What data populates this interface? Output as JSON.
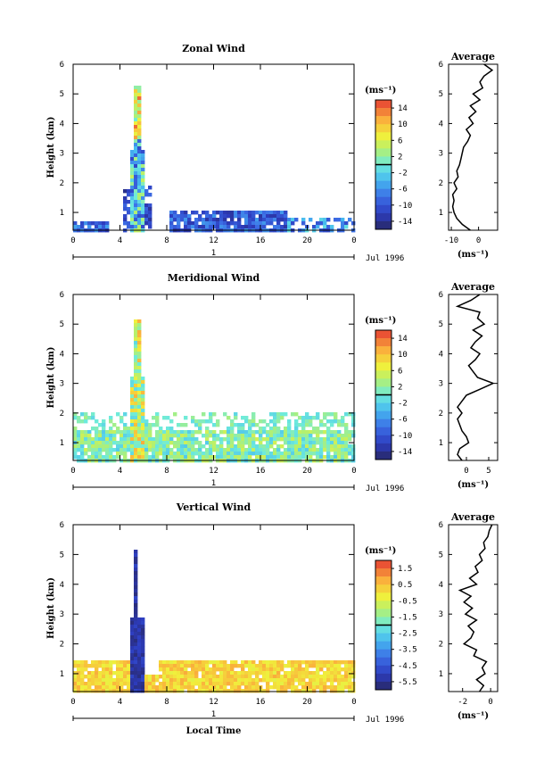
{
  "chart_data": [
    {
      "type": "heatmap",
      "title": "Zonal Wind",
      "ylabel": "Height (km)",
      "xlim": [
        0,
        24
      ],
      "ylim": [
        0.4,
        6
      ],
      "x_ticks": [
        "0",
        "4",
        "8",
        "12",
        "16",
        "20",
        "0"
      ],
      "y_ticks": [
        "1",
        "2",
        "3",
        "4",
        "5",
        "6"
      ],
      "date_label": "Jul 1996",
      "day_label": "1",
      "colorbar": {
        "unit": "(ms⁻¹)",
        "range": [
          -16,
          16
        ],
        "ticks": [
          "14",
          "10",
          "6",
          "2",
          "-2",
          "-6",
          "-10",
          "-14"
        ]
      },
      "profile": {
        "title": "Average",
        "xlabel": "(ms⁻¹)",
        "x_ticks": [
          "-10",
          "0"
        ],
        "xlim": [
          -11,
          7
        ],
        "heights": [
          0.4,
          0.6,
          0.8,
          1.0,
          1.2,
          1.4,
          1.6,
          1.8,
          2.0,
          2.2,
          2.4,
          2.6,
          2.8,
          3.0,
          3.2,
          3.4,
          3.6,
          3.8,
          4.0,
          4.2,
          4.4,
          4.6,
          4.8,
          5.0,
          5.2,
          5.4,
          5.6,
          5.8,
          6.0
        ],
        "values": [
          -3,
          -6,
          -8,
          -9,
          -9.5,
          -9,
          -9.5,
          -8,
          -9,
          -7.5,
          -8,
          -7,
          -6.5,
          -6,
          -5.5,
          -4,
          -3,
          -4.5,
          -2,
          -3.5,
          -1,
          -3,
          0.5,
          -2,
          1.5,
          0.5,
          2,
          5,
          2
        ]
      }
    },
    {
      "type": "heatmap",
      "title": "Meridional Wind",
      "ylabel": "Height (km)",
      "xlim": [
        0,
        24
      ],
      "ylim": [
        0.4,
        6
      ],
      "x_ticks": [
        "0",
        "4",
        "8",
        "12",
        "16",
        "20",
        "0"
      ],
      "y_ticks": [
        "1",
        "2",
        "3",
        "4",
        "5",
        "6"
      ],
      "date_label": "Jul 1996",
      "day_label": "1",
      "colorbar": {
        "unit": "(ms⁻¹)",
        "range": [
          -16,
          16
        ],
        "ticks": [
          "14",
          "10",
          "6",
          "2",
          "-2",
          "-6",
          "-10",
          "-14"
        ]
      },
      "profile": {
        "title": "Average",
        "xlabel": "(ms⁻¹)",
        "x_ticks": [
          "0",
          "5"
        ],
        "xlim": [
          -4,
          7
        ],
        "heights": [
          0.4,
          0.6,
          0.8,
          1.0,
          1.2,
          1.4,
          1.6,
          1.8,
          2.0,
          2.2,
          2.4,
          2.6,
          2.8,
          3.0,
          3.2,
          3.4,
          3.6,
          3.8,
          4.0,
          4.2,
          4.4,
          4.6,
          4.8,
          5.0,
          5.2,
          5.4,
          5.6,
          5.8,
          6.0
        ],
        "values": [
          -1,
          -2,
          -1.5,
          0.5,
          0,
          -1,
          -1.5,
          -2,
          -1,
          -2,
          -1,
          0,
          3,
          6,
          2.5,
          1.5,
          0.5,
          2,
          3,
          1,
          2,
          3.5,
          1.5,
          4,
          2.5,
          3,
          -2,
          1,
          3
        ]
      }
    },
    {
      "type": "heatmap",
      "title": "Vertical Wind",
      "ylabel": "Height (km)",
      "xlabel": "Local Time",
      "xlim": [
        0,
        24
      ],
      "ylim": [
        0.4,
        6
      ],
      "x_ticks": [
        "0",
        "4",
        "8",
        "12",
        "16",
        "20",
        "0"
      ],
      "y_ticks": [
        "1",
        "2",
        "3",
        "4",
        "5",
        "6"
      ],
      "date_label": "Jul 1996",
      "day_label": "1",
      "colorbar": {
        "unit": "(ms⁻¹)",
        "range": [
          -6,
          2
        ],
        "ticks": [
          "1.5",
          "0.5",
          "-0.5",
          "-1.5",
          "-2.5",
          "-3.5",
          "-4.5",
          "-5.5"
        ]
      },
      "profile": {
        "title": "Average",
        "xlabel": "(ms⁻¹)",
        "x_ticks": [
          "-2",
          "0"
        ],
        "xlim": [
          -3,
          0.5
        ],
        "heights": [
          0.4,
          0.6,
          0.8,
          1.0,
          1.2,
          1.4,
          1.6,
          1.8,
          2.0,
          2.2,
          2.4,
          2.6,
          2.8,
          3.0,
          3.2,
          3.4,
          3.6,
          3.8,
          4.0,
          4.2,
          4.4,
          4.6,
          4.8,
          5.0,
          5.2,
          5.4,
          5.6,
          5.8,
          6.0
        ],
        "values": [
          -0.8,
          -0.5,
          -1.0,
          -0.4,
          -0.6,
          -0.3,
          -1.2,
          -1.0,
          -1.9,
          -1.4,
          -1.2,
          -1.6,
          -1.0,
          -1.8,
          -1.3,
          -1.9,
          -1.4,
          -2.2,
          -1.0,
          -1.5,
          -0.9,
          -1.1,
          -0.6,
          -0.8,
          -0.4,
          -0.5,
          -0.2,
          -0.1,
          0.1
        ]
      }
    }
  ]
}
